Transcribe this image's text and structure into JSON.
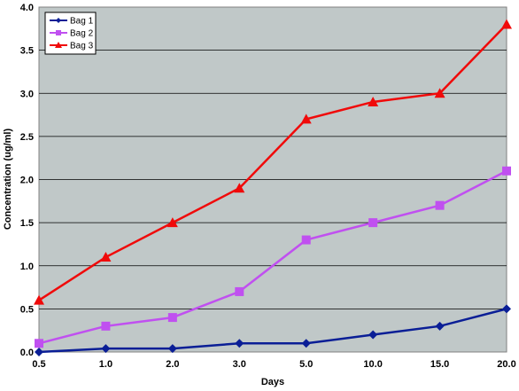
{
  "chart_data": {
    "type": "line",
    "categories": [
      "0.5",
      "1.0",
      "2.0",
      "3.0",
      "5.0",
      "10.0",
      "15.0",
      "20.0"
    ],
    "xlabel": "Days",
    "ylabel": "Concentration (ug/ml)",
    "ylim": [
      0,
      4.0
    ],
    "yticks": [
      "0.0",
      "0.5",
      "1.0",
      "1.5",
      "2.0",
      "2.5",
      "3.0",
      "3.5",
      "4.0"
    ],
    "grid": true,
    "legend_position": "top-left",
    "plot_background": "#C0C8C8",
    "series": [
      {
        "name": "Bag 1",
        "color": "#0A1E96",
        "marker": "diamond",
        "values": [
          0.0,
          0.04,
          0.04,
          0.1,
          0.1,
          0.2,
          0.3,
          0.5
        ]
      },
      {
        "name": "Bag 2",
        "color": "#C050F0",
        "marker": "square",
        "values": [
          0.1,
          0.3,
          0.4,
          0.7,
          1.3,
          1.5,
          1.7,
          2.1
        ]
      },
      {
        "name": "Bag 3",
        "color": "#F00A0A",
        "marker": "triangle",
        "values": [
          0.6,
          1.1,
          1.5,
          1.9,
          2.7,
          2.9,
          3.0,
          3.8
        ]
      }
    ]
  }
}
